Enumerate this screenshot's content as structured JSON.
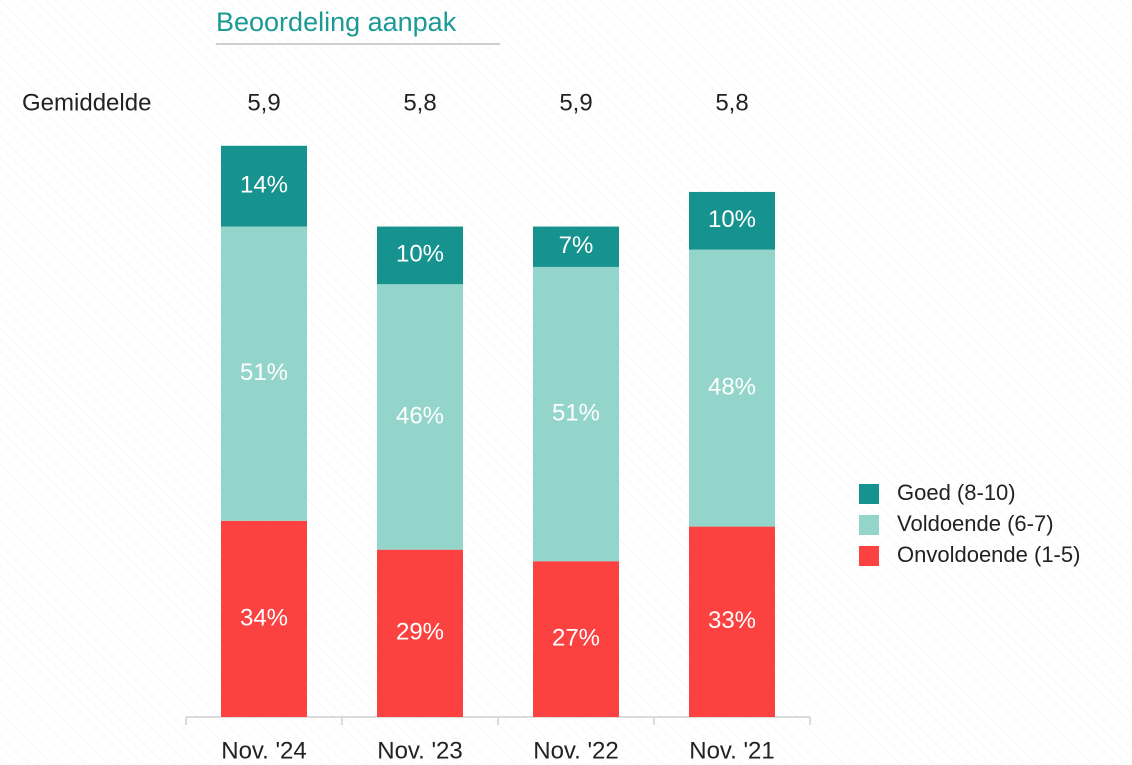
{
  "chart_data": {
    "type": "stacked-bar",
    "title": "Beoordeling aanpak",
    "categories": [
      "Nov. '24",
      "Nov. '23",
      "Nov. '22",
      "Nov. '21"
    ],
    "series": [
      {
        "name": "Onvoldoende (1-5)",
        "color": "#fc4141",
        "values": [
          34,
          29,
          27,
          33
        ],
        "value_labels": [
          "34%",
          "29%",
          "27%",
          "33%"
        ]
      },
      {
        "name": "Voldoende (6-7)",
        "color": "#94d5cb",
        "values": [
          51,
          46,
          51,
          48
        ],
        "value_labels": [
          "51%",
          "46%",
          "51%",
          "48%"
        ]
      },
      {
        "name": "Goed (8-10)",
        "color": "#17938f",
        "values": [
          14,
          10,
          7,
          10
        ],
        "value_labels": [
          "14%",
          "10%",
          "7%",
          "10%"
        ]
      }
    ],
    "average": {
      "label": "Gemiddelde",
      "values": [
        5.9,
        5.8,
        5.9,
        5.8
      ],
      "value_labels": [
        "5,9",
        "5,8",
        "5,9",
        "5,8"
      ]
    },
    "ylim": [
      0,
      100
    ],
    "legend": "right"
  }
}
